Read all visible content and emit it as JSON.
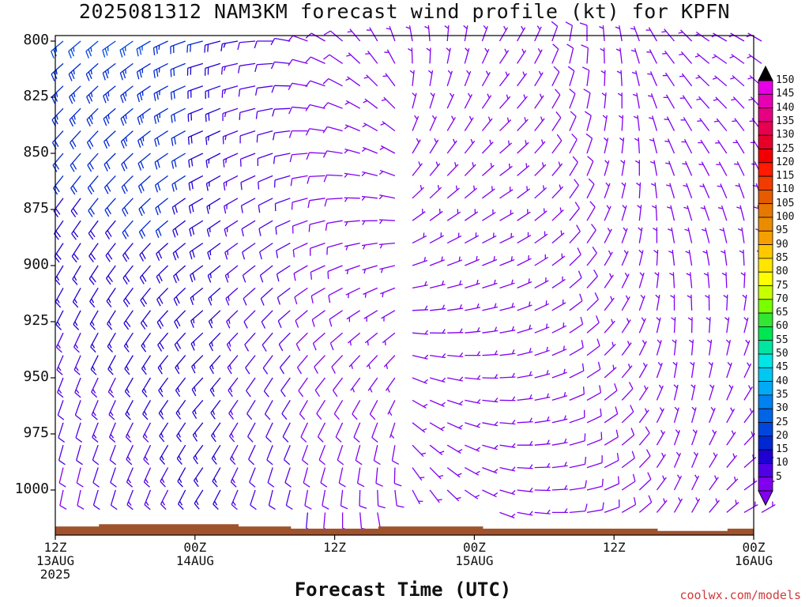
{
  "chart_data": {
    "type": "wind-barb-time-height",
    "title": "2025081312 NAM3KM forecast wind profile (kt) for KPFN",
    "xlabel": "Forecast Time (UTC)",
    "ylabel": "",
    "credit": "coolwx.com/models",
    "y_axis": {
      "unit": "hPa",
      "reversed": true,
      "range": [
        800,
        1020
      ],
      "ticks": [
        "800",
        "825",
        "850",
        "875",
        "900",
        "925",
        "950",
        "975",
        "1000"
      ]
    },
    "x_axis": {
      "range_hours": [
        0,
        60
      ],
      "ticks": [
        {
          "hour": 0,
          "lines": [
            "12Z",
            "13AUG",
            "2025"
          ]
        },
        {
          "hour": 12,
          "lines": [
            "00Z",
            "14AUG"
          ]
        },
        {
          "hour": 24,
          "lines": [
            "12Z"
          ]
        },
        {
          "hour": 36,
          "lines": [
            "00Z",
            "15AUG"
          ]
        },
        {
          "hour": 48,
          "lines": [
            "12Z"
          ]
        },
        {
          "hour": 60,
          "lines": [
            "00Z",
            "16AUG"
          ]
        }
      ]
    },
    "colorbar": {
      "unit": "kt",
      "labels": [
        "150",
        "145",
        "140",
        "135",
        "130",
        "125",
        "120",
        "115",
        "110",
        "105",
        "100",
        "95",
        "90",
        "85",
        "80",
        "75",
        "70",
        "65",
        "60",
        "55",
        "50",
        "45",
        "40",
        "35",
        "30",
        "25",
        "20",
        "15",
        "10",
        "5"
      ],
      "colors": [
        "#e600e6",
        "#e600b4",
        "#e60082",
        "#e60050",
        "#e60028",
        "#f00000",
        "#ff1a00",
        "#f03c00",
        "#e65a00",
        "#e67800",
        "#eb8c00",
        "#f5a000",
        "#ffc800",
        "#ffe600",
        "#ffff00",
        "#c8ff00",
        "#78ff00",
        "#32e632",
        "#00e650",
        "#00e6a0",
        "#00e6e6",
        "#00c8f0",
        "#00aaf5",
        "#0082f0",
        "#0064e6",
        "#0046dc",
        "#0028d2",
        "#1e00d2",
        "#5000e6",
        "#8200f0"
      ]
    },
    "wind_profile": {
      "note": "Barbs per time column: direction (deg from) and speed (kt) at 800 hPa and at surface",
      "times_hours": [
        0,
        1.5,
        3,
        4.5,
        6,
        7.5,
        9,
        10.5,
        12,
        13.5,
        15,
        16.5,
        18,
        19.5,
        21,
        22.5,
        24,
        25.5,
        27,
        28.5,
        30,
        31.5,
        33,
        34.5,
        36,
        37.5,
        39,
        40.5,
        42,
        43.5,
        45,
        46.5,
        48,
        49.5,
        51,
        52.5,
        54,
        55.5,
        57,
        58.5,
        60
      ],
      "dir_top": [
        230,
        230,
        230,
        235,
        235,
        240,
        245,
        250,
        255,
        255,
        260,
        265,
        270,
        280,
        290,
        300,
        310,
        320,
        330,
        340,
        350,
        355,
        5,
        10,
        20,
        30,
        30,
        25,
        20,
        10,
        0,
        355,
        350,
        340,
        330,
        320,
        315,
        305,
        300,
        300,
        300
      ],
      "dir_sfc": [
        190,
        190,
        195,
        195,
        200,
        200,
        205,
        205,
        210,
        205,
        200,
        195,
        190,
        190,
        185,
        185,
        180,
        175,
        170,
        165,
        160,
        150,
        140,
        130,
        120,
        110,
        100,
        95,
        90,
        85,
        80,
        70,
        60,
        50,
        40,
        30,
        30,
        40,
        50,
        60,
        60
      ],
      "spd_top": [
        25,
        25,
        25,
        25,
        25,
        25,
        24,
        22,
        20,
        18,
        15,
        12,
        10,
        10,
        8,
        8,
        8,
        6,
        6,
        5,
        5,
        5,
        5,
        5,
        5,
        5,
        6,
        6,
        8,
        8,
        8,
        6,
        6,
        5,
        5,
        5,
        6,
        6,
        5,
        5,
        5
      ],
      "spd_sfc": [
        8,
        8,
        10,
        10,
        12,
        12,
        14,
        15,
        15,
        15,
        14,
        12,
        10,
        10,
        10,
        8,
        8,
        8,
        8,
        8,
        6,
        6,
        6,
        6,
        6,
        5,
        5,
        6,
        6,
        8,
        8,
        8,
        8,
        8,
        6,
        6,
        6,
        6,
        5,
        5,
        5
      ],
      "levels_hpa": [
        800,
        810,
        820,
        830,
        840,
        850,
        860,
        870,
        880,
        890,
        900,
        910,
        920,
        930,
        940,
        950,
        960,
        970,
        980,
        990,
        1000,
        1010
      ],
      "surface_pressure_hpa": [
        1012,
        1012,
        1012,
        1011,
        1011,
        1011,
        1011,
        1011,
        1011,
        1011,
        1011,
        1012,
        1012,
        1012,
        1013,
        1013,
        1013,
        1013,
        1013,
        1012,
        1012,
        1012,
        1012,
        1012,
        1012,
        1013,
        1013,
        1013,
        1013,
        1013,
        1013,
        1013,
        1013,
        1013,
        1013,
        1014,
        1014,
        1014,
        1014,
        1013,
        1013
      ]
    }
  }
}
